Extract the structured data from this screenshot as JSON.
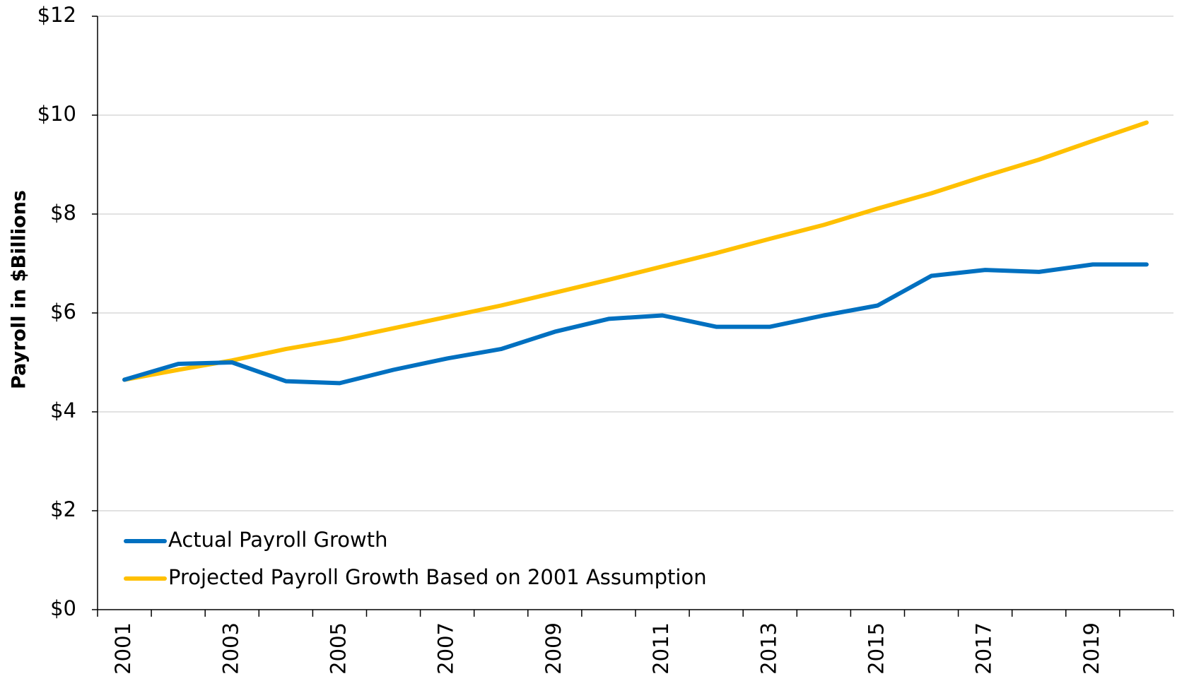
{
  "chart_data": {
    "type": "line",
    "y_label": "Payroll in $Billions",
    "categories": [
      "2001",
      null,
      "2003",
      null,
      "2005",
      null,
      "2007",
      null,
      "2009",
      null,
      "2011",
      null,
      "2013",
      null,
      "2015",
      null,
      "2017",
      null,
      "2019",
      null
    ],
    "series": [
      {
        "name": "Actual Payroll Growth",
        "color": "#0070c0",
        "values": [
          4.65,
          4.97,
          5.0,
          4.62,
          4.58,
          4.85,
          5.08,
          5.27,
          5.62,
          5.88,
          5.95,
          5.72,
          5.72,
          5.95,
          6.15,
          6.75,
          6.87,
          6.83,
          6.98,
          6.98
        ]
      },
      {
        "name": "Projected Payroll Growth Based on 2001 Assumption",
        "color": "#ffc000",
        "values": [
          4.65,
          4.85,
          5.04,
          5.27,
          5.46,
          5.69,
          5.92,
          6.15,
          6.41,
          6.67,
          6.94,
          7.21,
          7.5,
          7.78,
          8.11,
          8.42,
          8.77,
          9.1,
          9.48,
          9.85
        ]
      }
    ],
    "ylim": [
      0,
      12
    ],
    "yticks": [
      {
        "value": 0,
        "label": "$0"
      },
      {
        "value": 2,
        "label": "$2"
      },
      {
        "value": 4,
        "label": "$4"
      },
      {
        "value": 6,
        "label": "$6"
      },
      {
        "value": 8,
        "label": "$8"
      },
      {
        "value": 10,
        "label": "$10"
      },
      {
        "value": 12,
        "label": "$12"
      }
    ],
    "grid": true,
    "legend": "lower-left"
  }
}
